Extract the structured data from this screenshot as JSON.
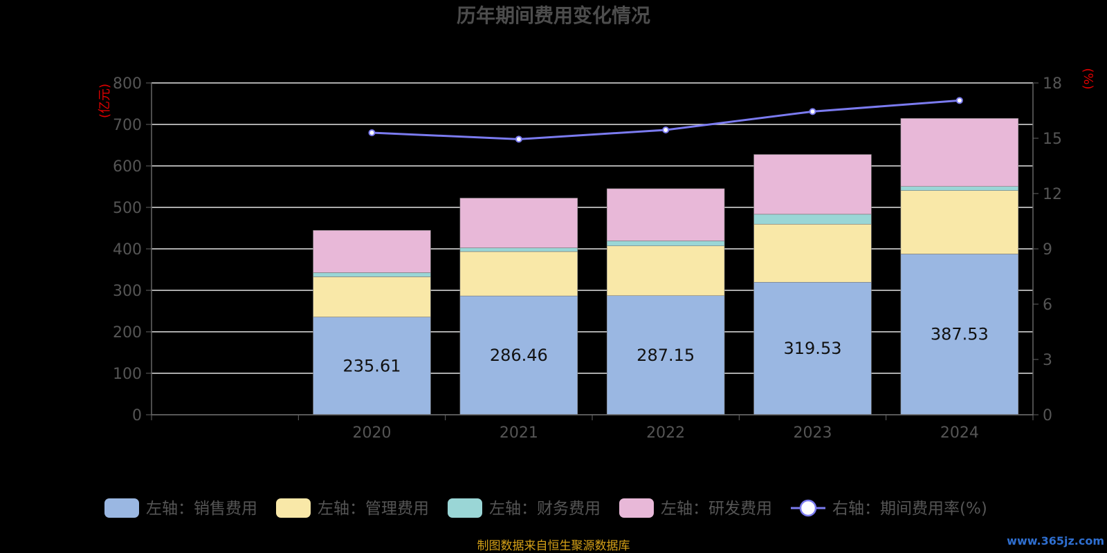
{
  "chart_data": {
    "type": "bar",
    "title": "历年期间费用变化情况",
    "categories": [
      "2020",
      "2021",
      "2022",
      "2023",
      "2024"
    ],
    "left_axis": {
      "unit": "(亿元)",
      "ylim": [
        0,
        800
      ],
      "ticks": [
        "0",
        "100",
        "200",
        "300",
        "400",
        "500",
        "600",
        "700",
        "800"
      ]
    },
    "right_axis": {
      "unit": "(%)",
      "ylim": [
        0,
        18
      ],
      "ticks": [
        "0",
        "3",
        "6",
        "9",
        "12",
        "15",
        "18"
      ]
    },
    "grid": true,
    "legend_position": "bottom",
    "series": [
      {
        "name": "左轴：销售费用",
        "type": "bar",
        "stacked": true,
        "axis": "left",
        "color": "#9ab7e2",
        "values": [
          235.61,
          286.46,
          287.15,
          319.53,
          387.53
        ],
        "labels": [
          "235.61",
          "286.46",
          "287.15",
          "319.53",
          "387.53"
        ]
      },
      {
        "name": "左轴：管理费用",
        "type": "bar",
        "stacked": true,
        "axis": "left",
        "color": "#f9e8a8",
        "values": [
          97,
          107,
          120,
          140,
          153
        ]
      },
      {
        "name": "左轴：财务费用",
        "type": "bar",
        "stacked": true,
        "axis": "left",
        "color": "#9ad6d6",
        "values": [
          10,
          9,
          12,
          24,
          10
        ]
      },
      {
        "name": "左轴：研发费用",
        "type": "bar",
        "stacked": true,
        "axis": "left",
        "color": "#e8b8d8",
        "values": [
          102,
          120,
          126,
          144,
          164
        ]
      },
      {
        "name": "右轴：期间费用率(%)",
        "type": "line",
        "axis": "right",
        "color": "#7b7bf0",
        "values": [
          15.3,
          14.95,
          15.45,
          16.45,
          17.05
        ]
      }
    ]
  },
  "footer": {
    "source": "制图数据来自恒生聚源数据库",
    "watermark": "www.365jz.com"
  }
}
